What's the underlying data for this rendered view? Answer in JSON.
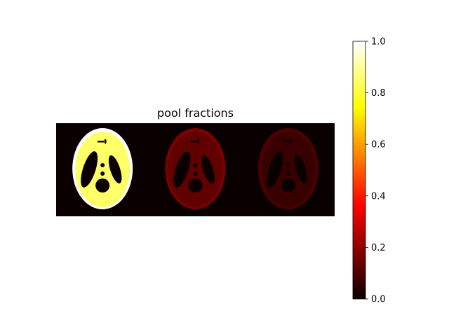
{
  "chart_data": {
    "type": "heatmap",
    "title": "pool fractions",
    "colormap": "hot",
    "colorbar": {
      "ticks": [
        0.0,
        0.2,
        0.4,
        0.6,
        0.8,
        1.0
      ],
      "tick_labels": [
        "0.0",
        "0.2",
        "0.4",
        "0.6",
        "0.8",
        "1.0"
      ],
      "range": [
        0.0,
        1.0
      ]
    },
    "panels": [
      {
        "body_value": 0.85,
        "rim_value": 1.0
      },
      {
        "body_value": 0.13,
        "rim_value": 0.17
      },
      {
        "body_value": 0.07,
        "rim_value": 0.1
      }
    ],
    "background_value": 0.0
  },
  "colors": {
    "background": "#0b0000",
    "axis_frame": "#000000"
  }
}
